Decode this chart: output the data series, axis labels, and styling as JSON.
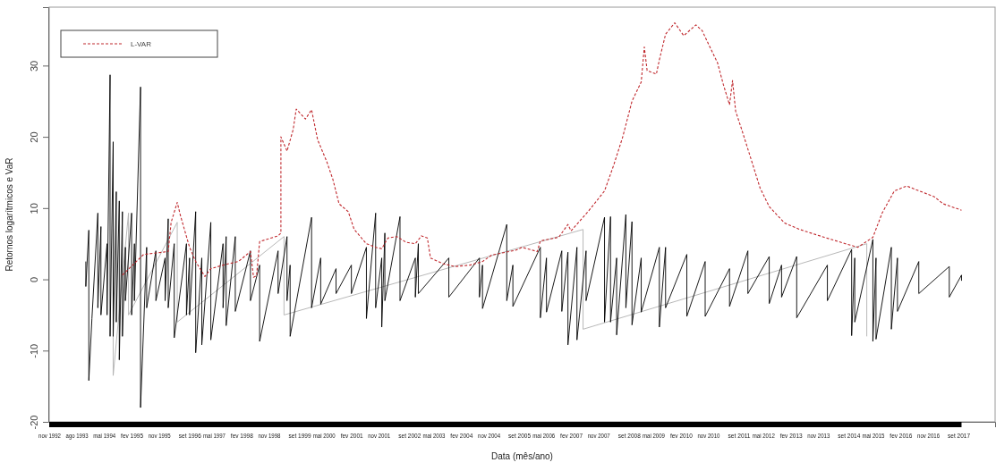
{
  "chart_data": {
    "type": "line",
    "xlabel": "Data (mês/ano)",
    "ylabel": "Retornos logarítmicos e VaR",
    "xlim": [
      "1992-11",
      "2018-09"
    ],
    "ylim": [
      -20,
      38.2
    ],
    "yticks": [
      -20,
      -10,
      0,
      10,
      20,
      30
    ],
    "xticks": [
      {
        "value": "1992-11",
        "label": "nov 1992"
      },
      {
        "value": "1993-08",
        "label": "ago 1993"
      },
      {
        "value": "1994-05",
        "label": "mai 1994"
      },
      {
        "value": "1995-02",
        "label": "fev 1995"
      },
      {
        "value": "1995-11",
        "label": "nov 1995"
      },
      {
        "value": "1996-09",
        "label": "set 1996"
      },
      {
        "value": "1997-05",
        "label": "mai 1997"
      },
      {
        "value": "1998-02",
        "label": "fev 1998"
      },
      {
        "value": "1998-11",
        "label": "nov 1998"
      },
      {
        "value": "1999-09",
        "label": "set 1999"
      },
      {
        "value": "2000-05",
        "label": "mai 2000"
      },
      {
        "value": "2001-02",
        "label": "fev 2001"
      },
      {
        "value": "2001-11",
        "label": "nov 2001"
      },
      {
        "value": "2002-09",
        "label": "set 2002"
      },
      {
        "value": "2003-05",
        "label": "mai 2003"
      },
      {
        "value": "2004-02",
        "label": "fev 2004"
      },
      {
        "value": "2004-11",
        "label": "nov 2004"
      },
      {
        "value": "2005-09",
        "label": "set 2005"
      },
      {
        "value": "2006-05",
        "label": "mai 2006"
      },
      {
        "value": "2007-02",
        "label": "fev 2007"
      },
      {
        "value": "2007-11",
        "label": "nov 2007"
      },
      {
        "value": "2008-09",
        "label": "set 2008"
      },
      {
        "value": "2009-05",
        "label": "mai 2009"
      },
      {
        "value": "2010-02",
        "label": "fev 2010"
      },
      {
        "value": "2010-11",
        "label": "nov 2010"
      },
      {
        "value": "2011-09",
        "label": "set 2011"
      },
      {
        "value": "2012-05",
        "label": "mai 2012"
      },
      {
        "value": "2013-02",
        "label": "fev 2013"
      },
      {
        "value": "2013-11",
        "label": "nov 2013"
      },
      {
        "value": "2014-09",
        "label": "set 2014"
      },
      {
        "value": "2015-05",
        "label": "mai 2015"
      },
      {
        "value": "2016-02",
        "label": "fev 2016"
      },
      {
        "value": "2016-11",
        "label": "nov 2016"
      },
      {
        "value": "2017-09",
        "label": "set 2017"
      }
    ],
    "grid": false,
    "legend": "top left",
    "marker": "none",
    "series": [
      {
        "color": "#b0b0b0",
        "line_style": "solid",
        "x": [
          "1994-08",
          "1994-08",
          "1995-01",
          "1995-01",
          "1996-05",
          "1996-05",
          "1999-04",
          "1999-04",
          "2007-06",
          "2007-06",
          "2015-03",
          "2015-03"
        ],
        "values": [
          7,
          -13.5,
          9.3,
          -5,
          8,
          -6,
          6,
          -5,
          7,
          -7,
          5,
          -8
        ]
      },
      {
        "color": "#000000",
        "line_style": "solid",
        "x": [
          "1993-11",
          "1993-11",
          "1993-12",
          "1993-12",
          "1994-01",
          "1994-03",
          "1994-03",
          "1994-04",
          "1994-04",
          "1994-06",
          "1994-06",
          "1994-07",
          "1994-07",
          "1994-08",
          "1994-08",
          "1994-09",
          "1994-09",
          "1994-10",
          "1994-10",
          "1994-11",
          "1994-11",
          "1994-12",
          "1994-12",
          "1995-02",
          "1995-02",
          "1995-03",
          "1995-03",
          "1995-05",
          "1995-05",
          "1995-07",
          "1995-07",
          "1995-10",
          "1995-10",
          "1996-01",
          "1996-01",
          "1996-02",
          "1996-02",
          "1996-04",
          "1996-04",
          "1996-08",
          "1996-08",
          "1996-09",
          "1996-09",
          "1996-11",
          "1996-11",
          "1997-01",
          "1997-01",
          "1997-04",
          "1997-04",
          "1997-08",
          "1997-08",
          "1997-09",
          "1997-09",
          "1997-12",
          "1997-12",
          "1998-05",
          "1998-05",
          "1998-08",
          "1998-08",
          "1999-02",
          "1999-02",
          "1999-05",
          "1999-05",
          "1999-06",
          "1999-06",
          "2000-01",
          "2000-01",
          "2000-04",
          "2000-04",
          "2000-09",
          "2000-09",
          "2001-02",
          "2001-02",
          "2001-07",
          "2001-07",
          "2001-10",
          "2001-10",
          "2001-12",
          "2001-12",
          "2002-01",
          "2002-01",
          "2002-06",
          "2002-06",
          "2002-11",
          "2002-11",
          "2002-12",
          "2002-12",
          "2003-10",
          "2003-10",
          "2004-08",
          "2004-08",
          "2004-09",
          "2004-09",
          "2005-05",
          "2005-05",
          "2005-07",
          "2005-07",
          "2006-04",
          "2006-04",
          "2006-06",
          "2006-06",
          "2006-11",
          "2006-11",
          "2007-01",
          "2007-01",
          "2007-04",
          "2007-04",
          "2007-07",
          "2007-07",
          "2008-01",
          "2008-01",
          "2008-03",
          "2008-03",
          "2008-05",
          "2008-05",
          "2008-08",
          "2008-08",
          "2008-10",
          "2008-10",
          "2009-01",
          "2009-01",
          "2009-07",
          "2009-07",
          "2009-09",
          "2009-09",
          "2010-04",
          "2010-04",
          "2010-10",
          "2010-10",
          "2011-06",
          "2011-06",
          "2011-12",
          "2011-12",
          "2012-07",
          "2012-07",
          "2012-11",
          "2012-11",
          "2013-04",
          "2013-04",
          "2014-02",
          "2014-02",
          "2014-10",
          "2014-10",
          "2014-11",
          "2014-11",
          "2015-05",
          "2015-05",
          "2015-06",
          "2015-06",
          "2015-11",
          "2015-11",
          "2016-01",
          "2016-01",
          "2016-08",
          "2016-08",
          "2017-06",
          "2017-06",
          "2017-10",
          "2017-10"
        ],
        "values": [
          2.5,
          -1,
          6.9,
          -14.2,
          -5.5,
          9.3,
          -4,
          7.4,
          -5,
          5,
          -5,
          28.7,
          -8,
          19.3,
          -8,
          12.3,
          -6,
          11,
          -11.3,
          9.5,
          -8,
          4.5,
          -3,
          9.3,
          -5,
          5,
          -3,
          27,
          -18,
          4.5,
          -4,
          4,
          -3,
          3,
          -3,
          8.5,
          -4,
          5,
          -8.2,
          5,
          -5,
          3,
          -5,
          9.5,
          -10.3,
          3,
          -9.2,
          8,
          -8.5,
          5,
          -4,
          6,
          -6.5,
          6,
          -4.5,
          4,
          -3,
          2,
          -8.7,
          4,
          -2,
          6,
          -3,
          2,
          -8,
          8.7,
          -4,
          3,
          -3.5,
          1.5,
          -2,
          2,
          -2,
          4.5,
          -5.5,
          9.3,
          -4,
          3,
          -6.7,
          6.5,
          -3,
          8.8,
          -3,
          3,
          -2.5,
          5,
          -2,
          3,
          -2.5,
          3,
          -2.5,
          2,
          -4.1,
          7.7,
          -3,
          2,
          -3.8,
          4.5,
          -5.4,
          3,
          -4.6,
          4,
          -4.5,
          3.8,
          -9.2,
          4.5,
          -8.5,
          4,
          -3,
          8.7,
          -6,
          8.8,
          -6,
          3,
          -7.8,
          9.1,
          -4,
          8.1,
          -6.4,
          3,
          -4.6,
          4.5,
          -6.7,
          4.5,
          -4,
          3.5,
          -5.2,
          2.5,
          -5.2,
          1.5,
          -3.8,
          4,
          -2,
          3.2,
          -3.4,
          2,
          -2.5,
          3.2,
          -5.4,
          2,
          -3,
          4.2,
          -7.9,
          3,
          -6,
          5.6,
          -8.7,
          3,
          -8.4,
          4.5,
          -7,
          3,
          -4.5,
          2.5,
          -2,
          1.8,
          -2.5,
          0.6,
          -0.2
        ]
      },
      {
        "name": "L-VAR",
        "color": "#c0282d",
        "line_style": "dashed",
        "x": [
          "1994-11",
          "1995-06",
          "1996-02",
          "1996-03",
          "1996-05",
          "1996-06",
          "1996-08",
          "1996-09",
          "1996-11",
          "1997-02",
          "1997-04",
          "1997-08",
          "1998-01",
          "1998-05",
          "1998-06",
          "1998-07",
          "1998-08",
          "1999-02",
          "1999-03",
          "1999-03",
          "1999-05",
          "1999-07",
          "1999-08",
          "1999-11",
          "2000-01",
          "2000-03",
          "2000-06",
          "2000-08",
          "2000-10",
          "2001-01",
          "2001-03",
          "2001-07",
          "2001-10",
          "2001-12",
          "2002-02",
          "2002-05",
          "2002-08",
          "2002-11",
          "2003-01",
          "2003-03",
          "2003-04",
          "2003-08",
          "2003-12",
          "2004-05",
          "2004-09",
          "2004-12",
          "2005-08",
          "2005-10",
          "2006-03",
          "2006-04",
          "2006-10",
          "2007-01",
          "2007-02",
          "2007-08",
          "2008-01",
          "2008-04",
          "2008-07",
          "2008-10",
          "2009-01",
          "2009-02",
          "2009-03",
          "2009-06",
          "2009-07",
          "2009-09",
          "2009-12",
          "2010-03",
          "2010-07",
          "2010-09",
          "2010-12",
          "2011-02",
          "2011-04",
          "2011-06",
          "2011-07",
          "2011-08",
          "2011-10",
          "2012-01",
          "2012-04",
          "2012-07",
          "2012-12",
          "2013-05",
          "2014-01",
          "2014-08",
          "2014-12",
          "2015-05",
          "2015-08",
          "2015-12",
          "2016-04",
          "2017-01",
          "2017-04",
          "2017-10"
        ],
        "values": [
          0.6,
          3.5,
          3.9,
          8,
          10.8,
          9,
          6,
          4.5,
          2.5,
          0.4,
          1.5,
          2,
          2.5,
          3.9,
          0.3,
          0.5,
          5.3,
          6.1,
          6.5,
          20,
          18,
          21,
          23.9,
          22.5,
          23.8,
          19.6,
          16.5,
          14,
          10.6,
          9.5,
          7,
          5,
          4.5,
          4.3,
          5.8,
          6,
          5.2,
          5,
          6.1,
          5.8,
          3,
          2.2,
          1.8,
          2,
          2.5,
          3.4,
          4.1,
          4.5,
          3.9,
          5.4,
          5.9,
          7.7,
          6.8,
          9.7,
          12.4,
          16,
          20,
          25,
          27.7,
          32.6,
          29.3,
          28.8,
          30.8,
          34.4,
          36,
          34.2,
          35.7,
          34.9,
          32.2,
          30.4,
          27.3,
          24.5,
          27.9,
          23.6,
          21,
          16.9,
          12.8,
          10.2,
          7.9,
          7,
          5.9,
          5,
          4.5,
          5.9,
          9.3,
          12.4,
          13.1,
          11.6,
          10.6,
          9.7
        ]
      }
    ]
  }
}
